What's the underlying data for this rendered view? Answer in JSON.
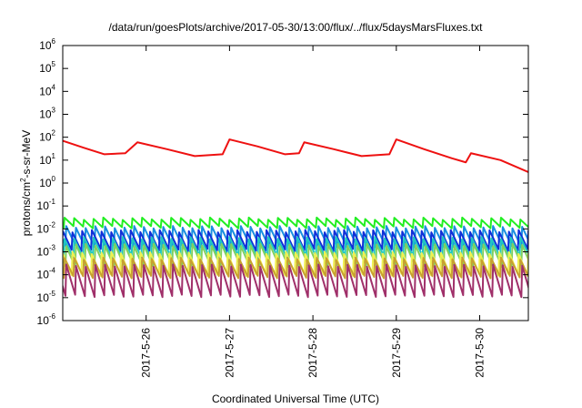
{
  "chart_data": {
    "type": "line",
    "title": "/data/run/goesPlots/archive/2017-05-30/13:00/flux/../flux/5daysMarsFluxes.txt",
    "xlabel": "Coordinated Universal Time (UTC)",
    "ylabel": {
      "base": "protons/cm",
      "sup": "2",
      "rest": "-s-sr-MeV"
    },
    "yscale": "log",
    "ylim": [
      1e-06,
      1000000.0
    ],
    "xlim": [
      "2017-05-25 00:00",
      "2017-05-30 14:00"
    ],
    "grid": false,
    "legend": "none",
    "yticks": [
      {
        "base": "10",
        "exp": "-6",
        "value": 1e-06
      },
      {
        "base": "10",
        "exp": "-5",
        "value": 1e-05
      },
      {
        "base": "10",
        "exp": "-4",
        "value": 0.0001
      },
      {
        "base": "10",
        "exp": "-3",
        "value": 0.001
      },
      {
        "base": "10",
        "exp": "-2",
        "value": 0.01
      },
      {
        "base": "10",
        "exp": "-1",
        "value": 0.1
      },
      {
        "base": "10",
        "exp": "0",
        "value": 1
      },
      {
        "base": "10",
        "exp": "1",
        "value": 10
      },
      {
        "base": "10",
        "exp": "2",
        "value": 100
      },
      {
        "base": "10",
        "exp": "3",
        "value": 1000
      },
      {
        "base": "10",
        "exp": "4",
        "value": 10000
      },
      {
        "base": "10",
        "exp": "5",
        "value": 100000
      },
      {
        "base": "10",
        "exp": "6",
        "value": 1000000
      }
    ],
    "xticks": [
      {
        "label": "2017-5-26",
        "value": "2017-05-26 00:00"
      },
      {
        "label": "2017-5-27",
        "value": "2017-05-27 00:00"
      },
      {
        "label": "2017-5-28",
        "value": "2017-05-28 00:00"
      },
      {
        "label": "2017-5-29",
        "value": "2017-05-29 00:00"
      },
      {
        "label": "2017-5-30",
        "value": "2017-05-30 00:00"
      }
    ],
    "series": [
      {
        "color": "#ee1111",
        "style": "sawtooth",
        "peaks": [
          [
            "2017-05-25 00:00",
            70
          ],
          [
            "2017-05-25 21:30",
            60
          ],
          [
            "2017-05-27 00:00",
            80
          ],
          [
            "2017-05-27 21:30",
            60
          ],
          [
            "2017-05-29 00:00",
            80
          ],
          [
            "2017-05-29 21:30",
            20
          ]
        ],
        "points": [
          [
            "2017-05-25 00:00",
            70
          ],
          [
            "2017-05-25 06:00",
            35
          ],
          [
            "2017-05-25 12:00",
            18
          ],
          [
            "2017-05-25 18:00",
            20
          ],
          [
            "2017-05-25 21:30",
            60
          ],
          [
            "2017-05-26 06:00",
            30
          ],
          [
            "2017-05-26 14:00",
            15
          ],
          [
            "2017-05-26 22:00",
            18
          ],
          [
            "2017-05-27 00:00",
            80
          ],
          [
            "2017-05-27 08:00",
            40
          ],
          [
            "2017-05-27 16:00",
            18
          ],
          [
            "2017-05-27 20:00",
            20
          ],
          [
            "2017-05-27 21:30",
            60
          ],
          [
            "2017-05-28 06:00",
            30
          ],
          [
            "2017-05-28 14:00",
            15
          ],
          [
            "2017-05-28 22:00",
            18
          ],
          [
            "2017-05-29 00:00",
            80
          ],
          [
            "2017-05-29 08:00",
            30
          ],
          [
            "2017-05-29 16:00",
            12
          ],
          [
            "2017-05-29 20:00",
            8
          ],
          [
            "2017-05-29 21:30",
            20
          ],
          [
            "2017-05-30 06:00",
            10
          ],
          [
            "2017-05-30 14:00",
            3
          ]
        ]
      },
      {
        "color": "#22ee22",
        "style": "sawtooth",
        "peak": 0.028,
        "trough": 0.012
      },
      {
        "color": "#1a8fe0",
        "style": "sawtooth",
        "peak": 0.012,
        "trough": 0.0018
      },
      {
        "color": "#1030d8",
        "style": "sawtooth",
        "peak": 0.008,
        "trough": 0.0012
      },
      {
        "color": "#20c8c0",
        "style": "sawtooth",
        "peak": 0.004,
        "trough": 0.0006
      },
      {
        "color": "#80d060",
        "style": "sawtooth",
        "peak": 0.002,
        "trough": 0.00025
      },
      {
        "color": "#f0f050",
        "style": "sawtooth",
        "peak": 0.0009,
        "trough": 0.0001
      },
      {
        "color": "#c8a030",
        "style": "sawtooth",
        "peak": 0.0005,
        "trough": 8e-05
      },
      {
        "color": "#a0306a",
        "style": "sawtooth",
        "peak": 0.00025,
        "trough": 1.2e-05
      }
    ],
    "cycles": 48
  }
}
